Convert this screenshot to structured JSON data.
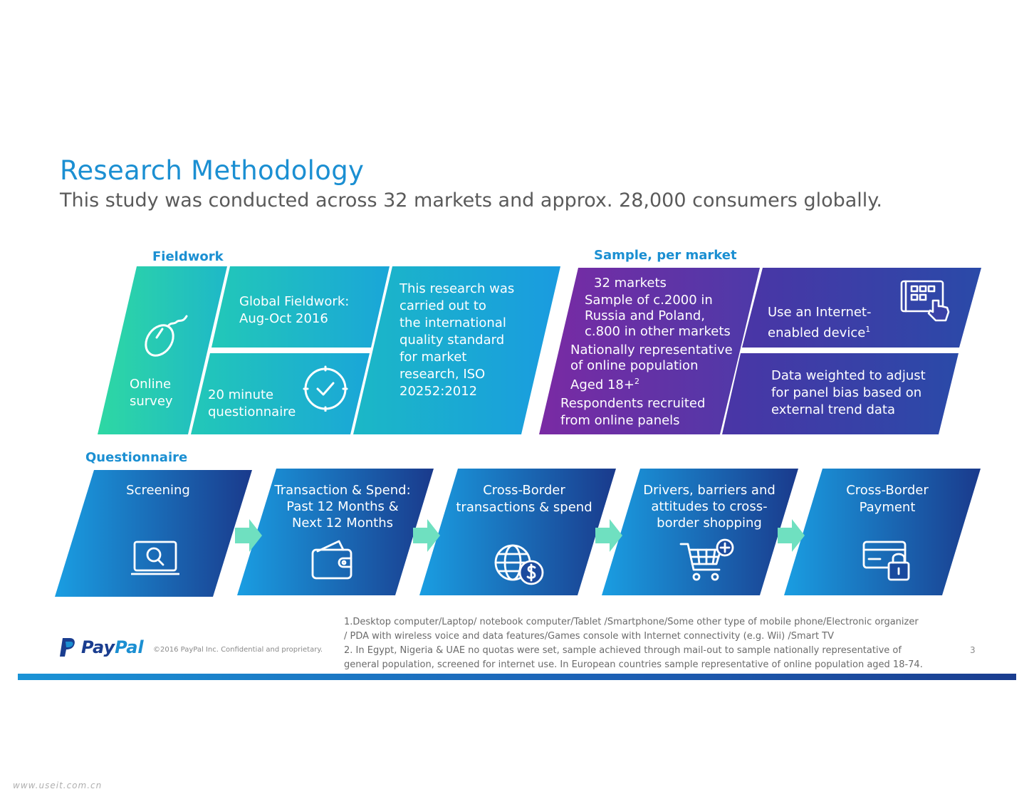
{
  "header": {
    "title": "Research  Methodology",
    "subtitle": "This study was conducted across 32 markets and approx. 28,000 consumers globally."
  },
  "fieldwork": {
    "label": "Fieldwork",
    "online_survey": [
      "Online",
      "survey"
    ],
    "global_fieldwork": [
      "Global Fieldwork:",
      "Aug-Oct 2016"
    ],
    "questionnaire_length": [
      "20 minute",
      "questionnaire"
    ],
    "iso_text": [
      "This research was",
      "carried out to",
      "the international",
      "quality standard",
      "for market",
      "research, ISO",
      "20252:2012"
    ]
  },
  "sample": {
    "label": "Sample, per market",
    "markets": "32 markets",
    "sample_size": [
      "Sample of c.2000 in",
      "Russia and Poland,",
      "c.800 in other markets"
    ],
    "representative": [
      "Nationally representative",
      "of  online population",
      "Aged 18+"
    ],
    "representative_sup": "2",
    "recruited": [
      "Respondents  recruited",
      "from online panels"
    ],
    "device": [
      "Use an Internet-",
      "enabled device"
    ],
    "device_sup": "1",
    "weighted": [
      "Data weighted to adjust",
      "for panel bias based on",
      "external trend data"
    ]
  },
  "questionnaire": {
    "label": "Questionnaire",
    "steps": [
      {
        "lines": [
          "Screening"
        ],
        "icon": "laptop-search-icon"
      },
      {
        "lines": [
          "Transaction & Spend:",
          "Past 12 Months &",
          "Next 12 Months"
        ],
        "icon": "wallet-icon"
      },
      {
        "lines": [
          "Cross-Border",
          "transactions & spend"
        ],
        "icon": "globe-dollar-icon"
      },
      {
        "lines": [
          "Drivers, barriers  and",
          "attitudes to cross-",
          "border shopping"
        ],
        "icon": "cart-plus-icon"
      },
      {
        "lines": [
          "Cross-Border",
          "Payment"
        ],
        "icon": "card-lock-icon"
      }
    ]
  },
  "footer": {
    "brand": "PayPal",
    "copyright": "©2016 PayPal Inc. Confidential   and  proprietary.",
    "notes": [
      "1.Desktop computer/Laptop/ notebook computer/Tablet /Smartphone/Some other type of mobile phone/Electronic organizer",
      "/ PDA with wireless voice and data features/Games console with Internet connectivity (e.g. Wii) /Smart TV",
      "2. In Egypt, Nigeria & UAE no quotas were set, sample achieved through mail-out to sample nationally representative of",
      "general population, screened for internet use. In European countries sample representative of online population aged 18-74."
    ],
    "page_number": "3",
    "watermark": "www.useit.com.cn"
  },
  "colors": {
    "accent": "#1b8fd2",
    "navy": "#1a3d8f",
    "teal": "#2fd5a0",
    "purple": "#6a2fa0",
    "arrow": "#6fe0c0"
  }
}
